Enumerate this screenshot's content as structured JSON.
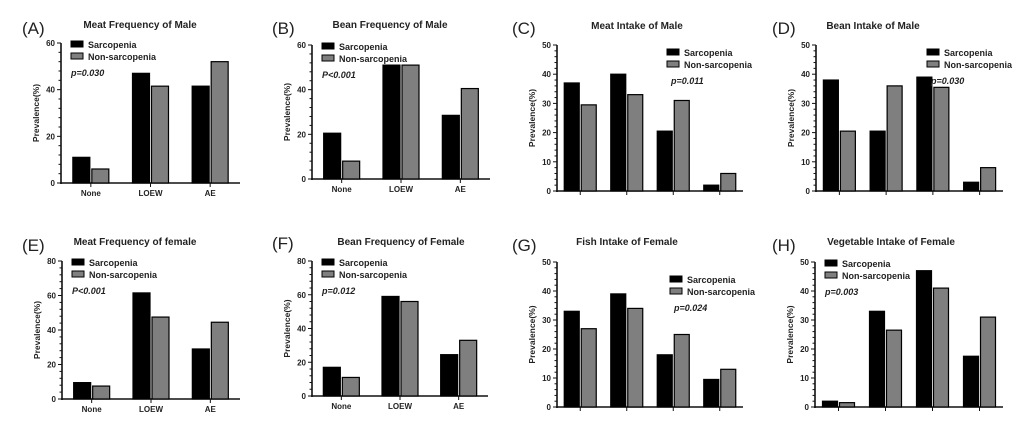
{
  "figure": {
    "legend_labels": [
      "Sarcopenia",
      "Non-sarcopenia"
    ],
    "colors": {
      "sarcopenia": "#000000",
      "non_sarcopenia": "#7f7f7f",
      "axis": "#111111"
    }
  },
  "chart_data": [
    {
      "panel": "(A)",
      "type": "bar",
      "title": "Meat Frequency of Male",
      "ylabel": "Prevalence(%)",
      "ylim": [
        0,
        60
      ],
      "yticks": [
        0,
        20,
        40,
        60
      ],
      "categories": [
        "None",
        "LOEW",
        "AE"
      ],
      "series": [
        {
          "name": "Sarcopenia",
          "values": [
            11,
            47,
            41.5
          ]
        },
        {
          "name": "Non-sarcopenia",
          "values": [
            6,
            41.5,
            52
          ]
        }
      ],
      "annotation": "p=0.030",
      "legend": "top-left"
    },
    {
      "panel": "(B)",
      "type": "bar",
      "title": "Bean Frequency of Male",
      "ylabel": "Prevalence(%)",
      "ylim": [
        0,
        60
      ],
      "yticks": [
        0,
        20,
        40,
        60
      ],
      "categories": [
        "None",
        "LOEW",
        "AE"
      ],
      "series": [
        {
          "name": "Sarcopenia",
          "values": [
            20.5,
            51,
            28.5
          ]
        },
        {
          "name": "Non-sarcopenia",
          "values": [
            8,
            51,
            40.5
          ]
        }
      ],
      "annotation": "P<0.001",
      "legend": "top-left"
    },
    {
      "panel": "(C)",
      "type": "bar",
      "title": "Meat Intake of Male",
      "ylabel": "Prevalence(%)",
      "ylim": [
        0,
        50
      ],
      "yticks": [
        0,
        10,
        20,
        30,
        40,
        50
      ],
      "categories": [
        "",
        "",
        "",
        ""
      ],
      "series": [
        {
          "name": "Sarcopenia",
          "values": [
            37,
            40,
            20.5,
            2
          ]
        },
        {
          "name": "Non-sarcopenia",
          "values": [
            29.5,
            33,
            31,
            6
          ]
        }
      ],
      "annotation": "p=0.011",
      "legend": "top-right"
    },
    {
      "panel": "(D)",
      "type": "bar",
      "title": "Bean Intake of Male",
      "ylabel": "Prevalence(%)",
      "ylim": [
        0,
        50
      ],
      "yticks": [
        0,
        10,
        20,
        30,
        40,
        50
      ],
      "categories": [
        "",
        "",
        "",
        ""
      ],
      "series": [
        {
          "name": "Sarcopenia",
          "values": [
            38,
            20.5,
            39,
            3
          ]
        },
        {
          "name": "Non-sarcopenia",
          "values": [
            20.5,
            36,
            35.5,
            8
          ]
        }
      ],
      "annotation": "p=0.030",
      "legend": "top-right"
    },
    {
      "panel": "(E)",
      "type": "bar",
      "title": "Meat Frequency of female",
      "ylabel": "Prevalence(%)",
      "ylim": [
        0,
        80
      ],
      "yticks": [
        0,
        20,
        40,
        60,
        80
      ],
      "categories": [
        "None",
        "LOEW",
        "AE"
      ],
      "series": [
        {
          "name": "Sarcopenia",
          "values": [
            9.5,
            61.5,
            29
          ]
        },
        {
          "name": "Non-sarcopenia",
          "values": [
            7.5,
            47.5,
            44.5
          ]
        }
      ],
      "annotation": "P<0.001",
      "legend": "top-left"
    },
    {
      "panel": "(F)",
      "type": "bar",
      "title": "Bean Frequency of Female",
      "ylabel": "Prevalence(%)",
      "ylim": [
        0,
        80
      ],
      "yticks": [
        0,
        20,
        40,
        60,
        80
      ],
      "categories": [
        "None",
        "LOEW",
        "AE"
      ],
      "series": [
        {
          "name": "Sarcopenia",
          "values": [
            17,
            59,
            24.5
          ]
        },
        {
          "name": "Non-sarcopenia",
          "values": [
            11,
            56,
            33
          ]
        }
      ],
      "annotation": "p=0.012",
      "legend": "top-left"
    },
    {
      "panel": "(G)",
      "type": "bar",
      "title": "Fish Intake of Female",
      "ylabel": "Prevalence(%)",
      "ylim": [
        0,
        50
      ],
      "yticks": [
        0,
        10,
        20,
        30,
        40,
        50
      ],
      "categories": [
        "",
        "",
        "",
        ""
      ],
      "series": [
        {
          "name": "Sarcopenia",
          "values": [
            33,
            39,
            18,
            9.5
          ]
        },
        {
          "name": "Non-sarcopenia",
          "values": [
            27,
            34,
            25,
            13
          ]
        }
      ],
      "annotation": "p=0.024",
      "legend": "top-right"
    },
    {
      "panel": "(H)",
      "type": "bar",
      "title": "Vegetable Intake of Female",
      "ylabel": "Prevalence(%)",
      "ylim": [
        0,
        50
      ],
      "yticks": [
        0,
        10,
        20,
        30,
        40,
        50
      ],
      "categories": [
        "",
        "",
        "",
        ""
      ],
      "series": [
        {
          "name": "Sarcopenia",
          "values": [
            2,
            33,
            47,
            17.5
          ]
        },
        {
          "name": "Non-sarcopenia",
          "values": [
            1.5,
            26.5,
            41,
            31
          ]
        }
      ],
      "annotation": "p=0.003",
      "legend": "top-left"
    }
  ]
}
